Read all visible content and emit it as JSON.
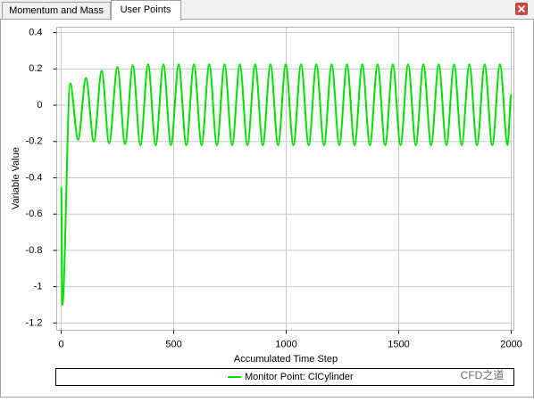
{
  "tabs": [
    "Momentum and Mass",
    "User Points"
  ],
  "watermark": "CFD之道",
  "chart_data": {
    "type": "line",
    "xlabel": "Accumulated Time Step",
    "ylabel": "Variable Value",
    "xlim": [
      -20,
      2012
    ],
    "ylim": [
      -1.24,
      0.43
    ],
    "xticks": [
      0,
      500,
      1000,
      1500,
      2000
    ],
    "yticks": [
      0.4,
      0.2,
      0,
      -0.2,
      -0.4,
      -0.6,
      -0.8,
      -1,
      -1.2
    ],
    "grid": true,
    "x": [
      0,
      5,
      40,
      75,
      110,
      145,
      180,
      213,
      250,
      284,
      318,
      352,
      386,
      420,
      454,
      488,
      522,
      556,
      590,
      624,
      658,
      692,
      726,
      760,
      794,
      828,
      862,
      896,
      930,
      964,
      998,
      1032,
      1066,
      1100,
      1134,
      1168,
      1202,
      1236,
      1270,
      1304,
      1338,
      1372,
      1406,
      1440,
      1474,
      1508,
      1542,
      1576,
      1610,
      1644,
      1678,
      1712,
      1746,
      1780,
      1814,
      1848,
      1882,
      1916,
      1950,
      1984,
      2000
    ],
    "series": [
      {
        "name": "Monitor Point: ClCylinder",
        "color": "#00e000",
        "values": [
          -0.45,
          -1.1,
          0.12,
          -0.19,
          0.15,
          -0.2,
          0.19,
          -0.21,
          0.21,
          -0.215,
          0.22,
          -0.22,
          0.225,
          -0.22,
          0.225,
          -0.22,
          0.225,
          -0.22,
          0.225,
          -0.22,
          0.225,
          -0.22,
          0.225,
          -0.22,
          0.225,
          -0.22,
          0.225,
          -0.22,
          0.225,
          -0.22,
          0.225,
          -0.22,
          0.225,
          -0.22,
          0.225,
          -0.22,
          0.225,
          -0.22,
          0.225,
          -0.22,
          0.225,
          -0.22,
          0.225,
          -0.22,
          0.225,
          -0.22,
          0.225,
          -0.22,
          0.225,
          -0.22,
          0.225,
          -0.22,
          0.225,
          -0.22,
          0.225,
          -0.22,
          0.225,
          -0.22,
          0.225,
          -0.22,
          0.06
        ]
      }
    ]
  }
}
